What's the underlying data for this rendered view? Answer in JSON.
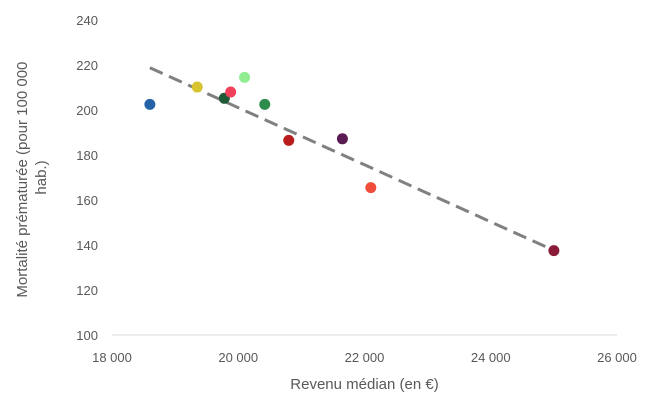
{
  "chart_data": {
    "type": "scatter",
    "title": "",
    "xlabel": "Revenu médian (en €)",
    "ylabel_lines": [
      "Mortalité prématurée (pour 100 000",
      "hab.)"
    ],
    "xlim": [
      18000,
      26000
    ],
    "ylim": [
      100,
      240
    ],
    "x_ticks": [
      18000,
      20000,
      22000,
      24000,
      26000
    ],
    "x_tick_labels": [
      "18 000",
      "20 000",
      "22 000",
      "24 000",
      "26 000"
    ],
    "y_ticks": [
      100,
      120,
      140,
      160,
      180,
      200,
      220,
      240
    ],
    "y_tick_labels": [
      "100",
      "120",
      "140",
      "160",
      "180",
      "200",
      "220",
      "240"
    ],
    "grid": false,
    "points": [
      {
        "x": 18600,
        "y": 202.5,
        "color": "#2563a8"
      },
      {
        "x": 19350,
        "y": 210.2,
        "color": "#d8c430"
      },
      {
        "x": 19780,
        "y": 205.2,
        "color": "#1f5a36"
      },
      {
        "x": 19880,
        "y": 208.0,
        "color": "#f0405a"
      },
      {
        "x": 20100,
        "y": 214.5,
        "color": "#90ee90"
      },
      {
        "x": 20420,
        "y": 202.5,
        "color": "#2e8b4e"
      },
      {
        "x": 20800,
        "y": 186.5,
        "color": "#b81c1c"
      },
      {
        "x": 21650,
        "y": 187.2,
        "color": "#5a1a52"
      },
      {
        "x": 22100,
        "y": 165.5,
        "color": "#f04e3a"
      },
      {
        "x": 25000,
        "y": 137.5,
        "color": "#8b1a36"
      }
    ],
    "trendline": {
      "x": [
        18600,
        25000
      ],
      "y": [
        218.8,
        137.6
      ],
      "color": "#808080",
      "style": "dashed"
    }
  }
}
